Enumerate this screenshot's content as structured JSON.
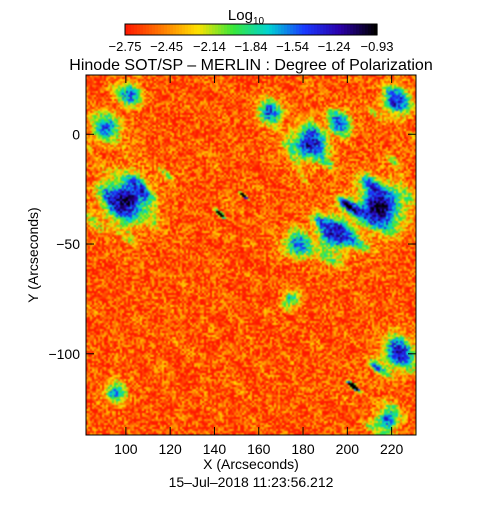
{
  "chart_data": {
    "type": "heatmap",
    "title": "Hinode SOT/SP – MERLIN : Degree of Polarization",
    "xlabel": "X (Arcseconds)",
    "ylabel": "Y (Arcseconds)",
    "timestamp": "15–Jul–2018 11:23:56.212",
    "xlim": [
      82,
      231
    ],
    "ylim": [
      -137,
      27
    ],
    "x_ticks": [
      100,
      120,
      140,
      160,
      180,
      200,
      220
    ],
    "x_tick_labels": [
      "100",
      "120",
      "140",
      "160",
      "180",
      "200",
      "220"
    ],
    "y_ticks": [
      0,
      -50,
      -100
    ],
    "y_tick_labels": [
      "0",
      "−50",
      "−100"
    ],
    "colorbar": {
      "title": "Log",
      "title_subscript": "10",
      "scale": "log10",
      "range": [
        -2.75,
        -0.93
      ],
      "ticks": [
        -2.75,
        -2.45,
        -2.14,
        -1.84,
        -1.54,
        -1.24,
        -0.93
      ],
      "tick_labels": [
        "−2.75",
        "−2.45",
        "−2.14",
        "−1.84",
        "−1.54",
        "−1.24",
        "−0.93"
      ],
      "colormap": [
        "#ff1a00",
        "#ff7a00",
        "#ffe100",
        "#38e83a",
        "#00d2d2",
        "#1a39ff",
        "#2a00a8",
        "#000000"
      ]
    },
    "background_level": -2.6,
    "high_polarization_patches": [
      {
        "x": 100,
        "y": -30,
        "size": 12,
        "level": -1.1
      },
      {
        "x": 91,
        "y": 3,
        "size": 7,
        "level": -1.5
      },
      {
        "x": 102,
        "y": 18,
        "size": 6,
        "level": -1.5
      },
      {
        "x": 165,
        "y": 10,
        "size": 6,
        "level": -1.4
      },
      {
        "x": 183,
        "y": -4,
        "size": 9,
        "level": -1.2
      },
      {
        "x": 196,
        "y": 5,
        "size": 6,
        "level": -1.4
      },
      {
        "x": 222,
        "y": 15,
        "size": 7,
        "level": -1.3
      },
      {
        "x": 214,
        "y": -33,
        "size": 12,
        "level": -1.0
      },
      {
        "x": 195,
        "y": -45,
        "size": 10,
        "level": -1.2
      },
      {
        "x": 178,
        "y": -50,
        "size": 7,
        "level": -1.5
      },
      {
        "x": 223,
        "y": -100,
        "size": 8,
        "level": -1.2
      },
      {
        "x": 218,
        "y": -130,
        "size": 6,
        "level": -1.5
      },
      {
        "x": 95,
        "y": -118,
        "size": 5,
        "level": -1.6
      },
      {
        "x": 175,
        "y": -75,
        "size": 4,
        "level": -1.7
      }
    ]
  }
}
